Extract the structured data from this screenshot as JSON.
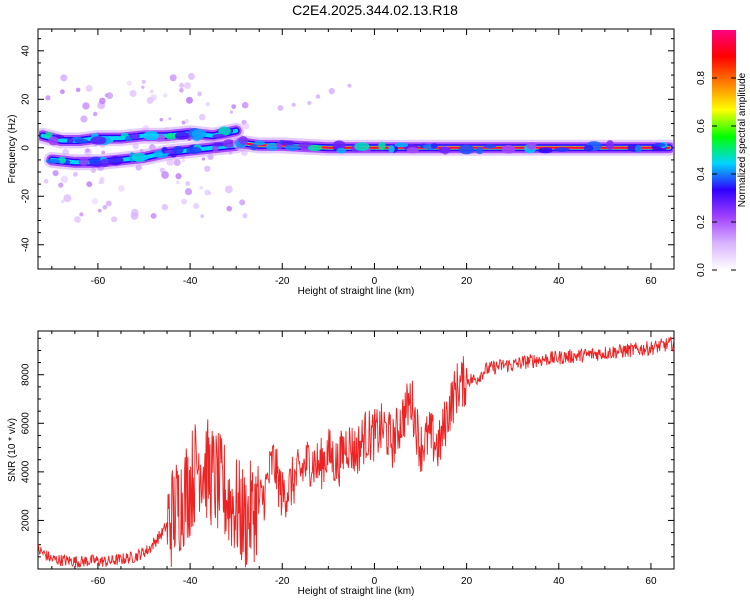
{
  "title": "C2E4.2025.344.02.13.R18",
  "chart_data": [
    {
      "type": "heatmap",
      "xlabel": "Height of straight line (km)",
      "ylabel": "Frequency (Hz)",
      "xlim": [
        -73,
        65
      ],
      "ylim": [
        -50,
        49
      ],
      "xticks": [
        -60,
        -40,
        -20,
        0,
        20,
        40,
        60
      ],
      "yticks": [
        -40,
        -20,
        0,
        20,
        40
      ],
      "colorbar": {
        "label": "Normalized spectral amplitude",
        "range": [
          0,
          1
        ],
        "ticks": [
          "0.0",
          "0.2",
          "0.4",
          "0.6",
          "0.8"
        ],
        "colors": [
          "#ffffff",
          "#d9b3ff",
          "#a040ff",
          "#2f00ff",
          "#00d5ff",
          "#00ff00",
          "#ffff00",
          "#ff8000",
          "#ff0000",
          "#ff0080"
        ]
      },
      "ridges": [
        {
          "points": [
            [
              -72,
              5
            ],
            [
              -68,
              3
            ],
            [
              -64,
              3
            ],
            [
              -60,
              4
            ],
            [
              -55,
              4
            ],
            [
              -50,
              5
            ],
            [
              -45,
              5
            ],
            [
              -40,
              6
            ],
            [
              -35,
              5
            ],
            [
              -30,
              7
            ]
          ],
          "peak": 0.45
        },
        {
          "points": [
            [
              -70,
              -5
            ],
            [
              -65,
              -6
            ],
            [
              -60,
              -6
            ],
            [
              -55,
              -5
            ],
            [
              -50,
              -4
            ],
            [
              -45,
              -2
            ],
            [
              -40,
              -1
            ],
            [
              -35,
              0
            ],
            [
              -30,
              1
            ]
          ],
          "peak": 0.5
        },
        {
          "points": [
            [
              -29,
              2
            ],
            [
              -25,
              1
            ],
            [
              -20,
              1
            ],
            [
              -15,
              0.5
            ],
            [
              -10,
              0
            ],
            [
              -5,
              0
            ],
            [
              0,
              0
            ],
            [
              5,
              0
            ],
            [
              10,
              0
            ],
            [
              15,
              0
            ],
            [
              20,
              0
            ],
            [
              30,
              0
            ],
            [
              40,
              0
            ],
            [
              50,
              0
            ],
            [
              60,
              0
            ],
            [
              64,
              0
            ]
          ],
          "peak": 0.95
        }
      ]
    },
    {
      "type": "line",
      "xlabel": "Height of straight line (km)",
      "ylabel": "SNR (10 * v/v)",
      "xlim": [
        -73,
        65
      ],
      "ylim": [
        0,
        9800
      ],
      "xticks": [
        -60,
        -40,
        -20,
        0,
        20,
        40,
        60
      ],
      "yticks": [
        2000,
        4000,
        6000,
        8000
      ],
      "color": "#ee2222",
      "series": [
        {
          "x": [
            -73,
            -70,
            -67,
            -64,
            -61,
            -58,
            -55,
            -52,
            -49,
            -46,
            -43,
            -40,
            -38,
            -36,
            -34,
            -32,
            -30,
            -28,
            -26,
            -24,
            -22,
            -20,
            -18,
            -16,
            -14,
            -12,
            -10,
            -8,
            -6,
            -4,
            -2,
            0,
            2,
            4,
            6,
            8,
            10,
            12,
            14,
            16,
            18,
            20,
            22,
            24,
            26,
            28,
            30,
            32,
            35,
            40,
            45,
            50,
            55,
            60,
            65
          ],
          "y": [
            800,
            400,
            350,
            300,
            350,
            300,
            400,
            500,
            800,
            1500,
            2500,
            3500,
            4500,
            4000,
            3500,
            3000,
            2500,
            2000,
            2500,
            3000,
            4500,
            3000,
            3500,
            4000,
            4500,
            4200,
            4800,
            4300,
            5200,
            4800,
            5500,
            5500,
            5800,
            5200,
            6200,
            7000,
            5000,
            5500,
            5000,
            6500,
            7500,
            7800,
            7800,
            8200,
            8300,
            8400,
            8400,
            8500,
            8600,
            8700,
            8800,
            8900,
            9000,
            9100,
            9300
          ]
        }
      ]
    }
  ]
}
